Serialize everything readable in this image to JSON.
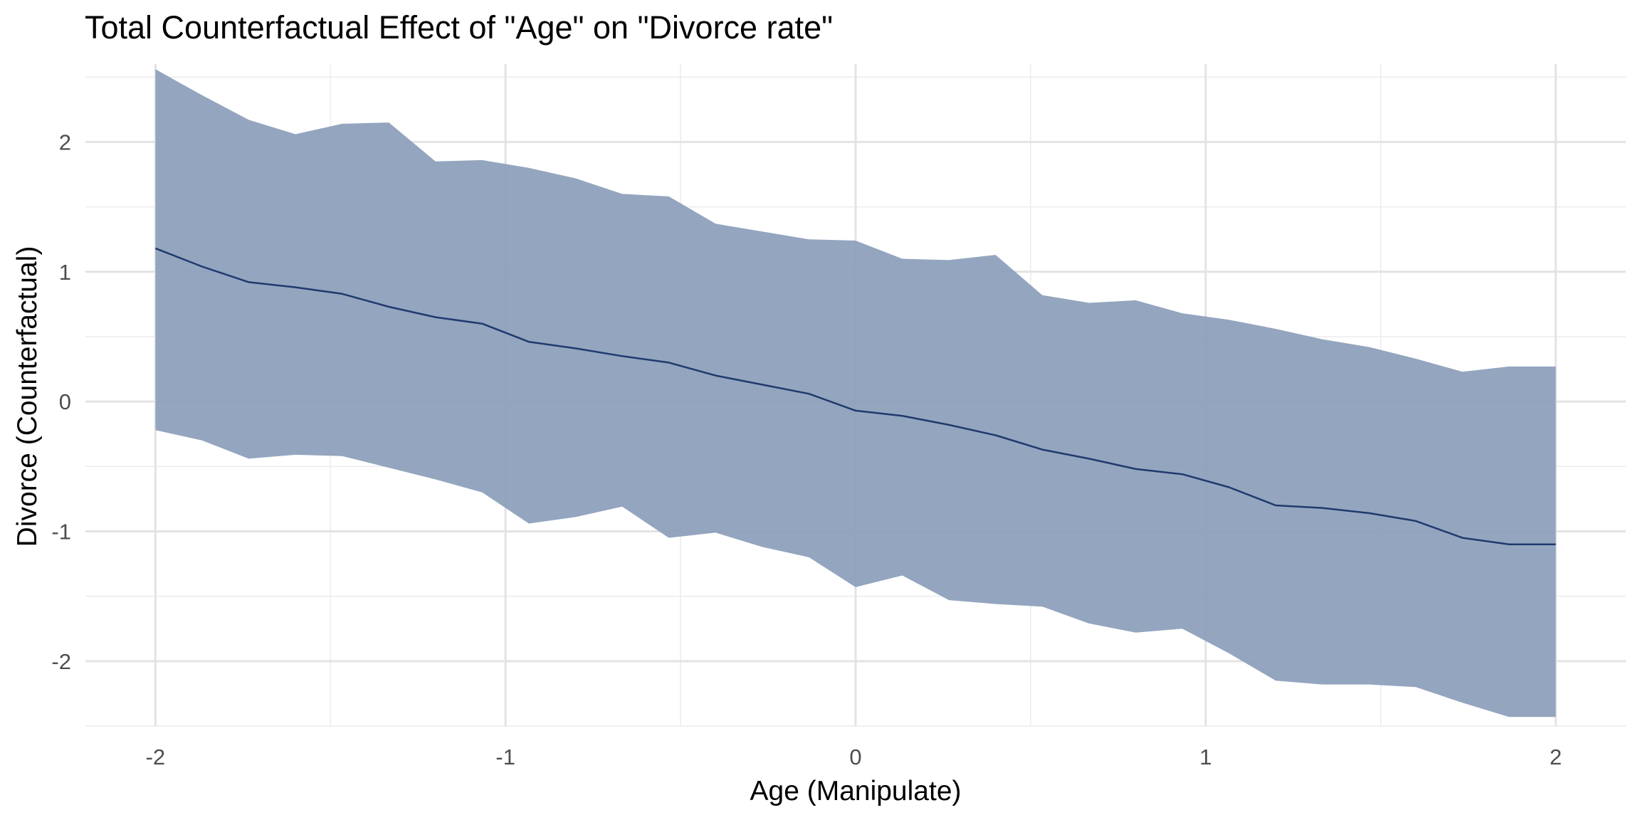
{
  "chart_data": {
    "type": "area",
    "title": "Total Counterfactual Effect of \"Age\" on \"Divorce rate\"",
    "xlabel": "Age (Manipulate)",
    "ylabel": "Divorce (Counterfactual)",
    "xlim": [
      -2.2,
      2.2
    ],
    "ylim": [
      -2.5,
      2.6
    ],
    "x_ticks": [
      -2,
      -1,
      0,
      1,
      2
    ],
    "y_ticks": [
      -2,
      -1,
      0,
      1,
      2
    ],
    "grid": true,
    "legend": "none",
    "colors": {
      "band": "#8b9dba",
      "line": "#1f3a6e"
    },
    "x": [
      -2,
      -1.8667,
      -1.7333,
      -1.6,
      -1.4667,
      -1.3333,
      -1.2,
      -1.0667,
      -0.9333,
      -0.8,
      -0.6667,
      -0.5333,
      -0.4,
      -0.2667,
      -0.1333,
      0,
      0.1333,
      0.2667,
      0.4,
      0.5333,
      0.6667,
      0.8,
      0.9333,
      1.0667,
      1.2,
      1.3333,
      1.4667,
      1.6,
      1.7333,
      1.8667,
      2
    ],
    "series": [
      {
        "role": "mean",
        "values": [
          1.18,
          1.04,
          0.92,
          0.88,
          0.83,
          0.73,
          0.65,
          0.6,
          0.46,
          0.41,
          0.35,
          0.3,
          0.2,
          0.13,
          0.06,
          -0.07,
          -0.11,
          -0.18,
          -0.26,
          -0.37,
          -0.44,
          -0.52,
          -0.56,
          -0.66,
          -0.8,
          -0.82,
          -0.86,
          -0.92,
          -1.05,
          -1.1,
          -1.1
        ]
      },
      {
        "role": "upper",
        "values": [
          2.56,
          2.36,
          2.17,
          2.06,
          2.14,
          2.15,
          1.85,
          1.86,
          1.8,
          1.72,
          1.6,
          1.58,
          1.37,
          1.31,
          1.25,
          1.24,
          1.1,
          1.09,
          1.13,
          0.82,
          0.76,
          0.78,
          0.68,
          0.63,
          0.56,
          0.48,
          0.42,
          0.33,
          0.23,
          0.27,
          0.27
        ]
      },
      {
        "role": "lower",
        "values": [
          -0.22,
          -0.3,
          -0.44,
          -0.41,
          -0.42,
          -0.51,
          -0.6,
          -0.7,
          -0.94,
          -0.89,
          -0.81,
          -1.05,
          -1.01,
          -1.12,
          -1.2,
          -1.43,
          -1.34,
          -1.53,
          -1.56,
          -1.58,
          -1.71,
          -1.78,
          -1.75,
          -1.94,
          -2.15,
          -2.18,
          -2.18,
          -2.2,
          -2.32,
          -2.43,
          -2.43
        ]
      }
    ]
  }
}
